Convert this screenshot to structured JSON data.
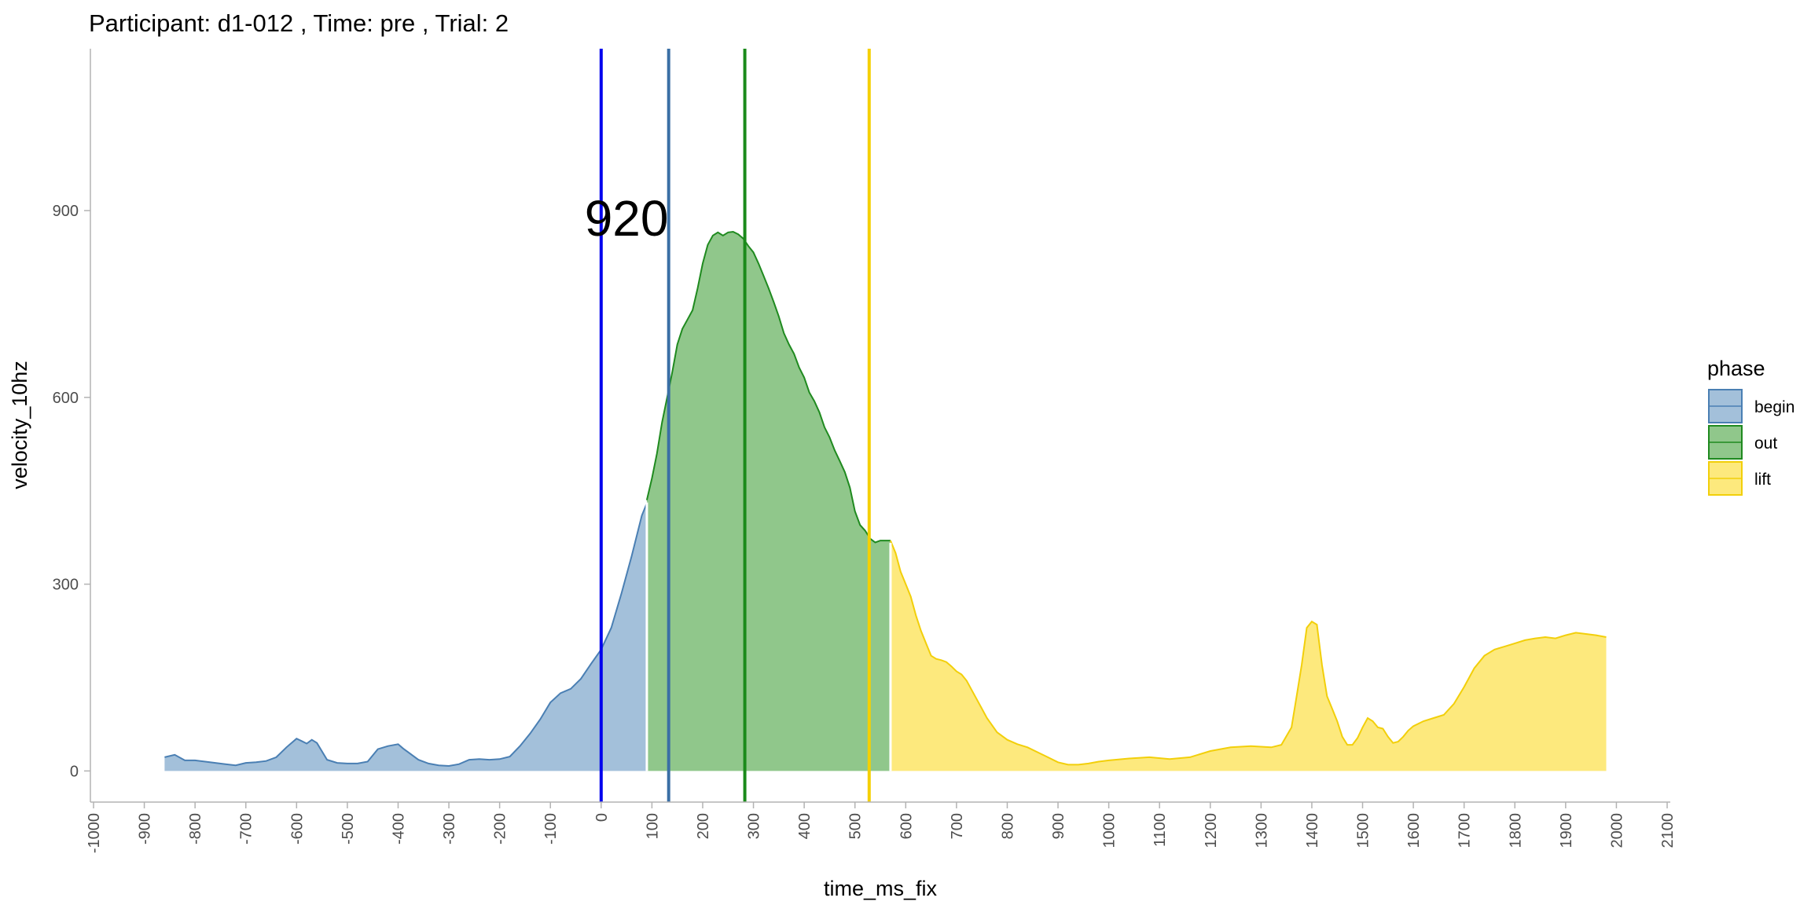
{
  "chart_data": {
    "type": "area",
    "title": "Participant:  d1-012 , Time: pre , Trial:  2",
    "xlabel": "time_ms_fix",
    "ylabel": "velocity_10hz",
    "xlim": [
      -1000,
      2100
    ],
    "ylim": [
      -50,
      1160
    ],
    "x_ticks": [
      -1000,
      -900,
      -800,
      -700,
      -600,
      -500,
      -400,
      -300,
      -200,
      -100,
      0,
      100,
      200,
      300,
      400,
      500,
      600,
      700,
      800,
      900,
      1000,
      1100,
      1200,
      1300,
      1400,
      1500,
      1600,
      1700,
      1800,
      1900,
      2000,
      2100
    ],
    "x_tick_labels": [
      "-1000",
      "-900",
      "-800",
      "-700",
      "-600",
      "-500",
      "-400",
      "-300",
      "-200",
      "-100",
      "0",
      "100",
      "200",
      "300",
      "400",
      "500",
      "600",
      "700",
      "800",
      "900",
      "1000",
      "1100",
      "1200",
      "1300",
      "1400",
      "1500",
      "1600",
      "1700",
      "1800",
      "1900",
      "2000",
      "2100"
    ],
    "y_ticks": [
      0,
      300,
      600,
      900
    ],
    "y_tick_labels": [
      "0",
      "300",
      "600",
      "900"
    ],
    "grid": false,
    "legend": {
      "title": "phase",
      "placement": "right",
      "entries": [
        {
          "label": "begin",
          "fill": "#a3c0da",
          "stroke": "#4a7fb3"
        },
        {
          "label": "out",
          "fill": "#90c78b",
          "stroke": "#1f8a1f"
        },
        {
          "label": "lift",
          "fill": "#fde97d",
          "stroke": "#f2cf0a"
        }
      ]
    },
    "series": [
      {
        "name": "begin",
        "fill": "#a3c0da",
        "stroke": "#4a7fb3",
        "x": [
          -860,
          -840,
          -820,
          -800,
          -780,
          -760,
          -740,
          -720,
          -700,
          -680,
          -660,
          -640,
          -620,
          -600,
          -590,
          -580,
          -570,
          -560,
          -540,
          -520,
          -500,
          -480,
          -460,
          -440,
          -420,
          -400,
          -390,
          -380,
          -360,
          -340,
          -320,
          -300,
          -280,
          -260,
          -240,
          -220,
          -200,
          -180,
          -160,
          -140,
          -120,
          -100,
          -80,
          -60,
          -40,
          -20,
          0,
          20,
          40,
          60,
          80,
          90
        ],
        "values": [
          22,
          26,
          17,
          17,
          15,
          13,
          11,
          9,
          13,
          14,
          16,
          22,
          38,
          52,
          48,
          44,
          50,
          45,
          18,
          13,
          12,
          12,
          15,
          35,
          40,
          43,
          36,
          30,
          18,
          12,
          9,
          8,
          11,
          18,
          19,
          18,
          19,
          23,
          40,
          60,
          83,
          110,
          125,
          132,
          148,
          172,
          195,
          230,
          285,
          345,
          410,
          430
        ]
      },
      {
        "name": "out",
        "fill": "#90c78b",
        "stroke": "#1f8a1f",
        "x": [
          90,
          100,
          110,
          120,
          130,
          140,
          150,
          160,
          170,
          180,
          190,
          200,
          210,
          220,
          230,
          240,
          250,
          260,
          270,
          280,
          290,
          300,
          310,
          320,
          330,
          340,
          350,
          360,
          370,
          380,
          390,
          400,
          410,
          420,
          430,
          440,
          450,
          460,
          470,
          480,
          490,
          500,
          510,
          520,
          530,
          540,
          550,
          560,
          570
        ],
        "values": [
          435,
          470,
          510,
          560,
          600,
          640,
          685,
          710,
          725,
          740,
          775,
          815,
          845,
          860,
          865,
          860,
          865,
          866,
          862,
          855,
          843,
          833,
          815,
          795,
          775,
          753,
          730,
          703,
          685,
          670,
          648,
          632,
          608,
          594,
          576,
          552,
          536,
          515,
          498,
          480,
          455,
          417,
          395,
          386,
          373,
          367,
          370,
          370,
          370
        ]
      },
      {
        "name": "lift",
        "fill": "#fde97d",
        "stroke": "#f2cf0a",
        "x": [
          570,
          580,
          590,
          600,
          610,
          620,
          630,
          640,
          650,
          660,
          670,
          680,
          690,
          700,
          710,
          720,
          730,
          740,
          750,
          760,
          780,
          800,
          820,
          840,
          860,
          880,
          900,
          920,
          940,
          960,
          980,
          1000,
          1040,
          1080,
          1120,
          1160,
          1200,
          1240,
          1280,
          1320,
          1340,
          1360,
          1370,
          1380,
          1390,
          1400,
          1410,
          1420,
          1430,
          1440,
          1450,
          1460,
          1470,
          1480,
          1490,
          1500,
          1510,
          1520,
          1530,
          1540,
          1550,
          1560,
          1570,
          1580,
          1590,
          1600,
          1620,
          1640,
          1660,
          1680,
          1700,
          1720,
          1740,
          1760,
          1780,
          1800,
          1820,
          1840,
          1860,
          1880,
          1900,
          1920,
          1940,
          1960,
          1980
        ],
        "values": [
          370,
          350,
          320,
          300,
          280,
          250,
          225,
          205,
          185,
          180,
          178,
          175,
          168,
          160,
          155,
          145,
          130,
          115,
          100,
          85,
          62,
          50,
          43,
          38,
          30,
          22,
          14,
          10,
          10,
          12,
          15,
          17,
          20,
          22,
          19,
          22,
          32,
          38,
          40,
          38,
          42,
          70,
          120,
          170,
          230,
          240,
          235,
          170,
          120,
          100,
          80,
          55,
          42,
          42,
          53,
          70,
          85,
          80,
          70,
          68,
          55,
          45,
          47,
          55,
          65,
          72,
          80,
          85,
          90,
          108,
          135,
          165,
          185,
          195,
          200,
          205,
          210,
          213,
          215,
          213,
          218,
          222,
          220,
          218,
          215
        ]
      }
    ],
    "vlines": [
      {
        "x": 0,
        "color": "#0000ee"
      },
      {
        "x": 133,
        "color": "#3a6fa5"
      },
      {
        "x": 283,
        "color": "#1a8a1a"
      },
      {
        "x": 528,
        "color": "#f5d000"
      }
    ],
    "annotations": [
      {
        "text": "920",
        "x": 50,
        "y": 860
      }
    ]
  }
}
